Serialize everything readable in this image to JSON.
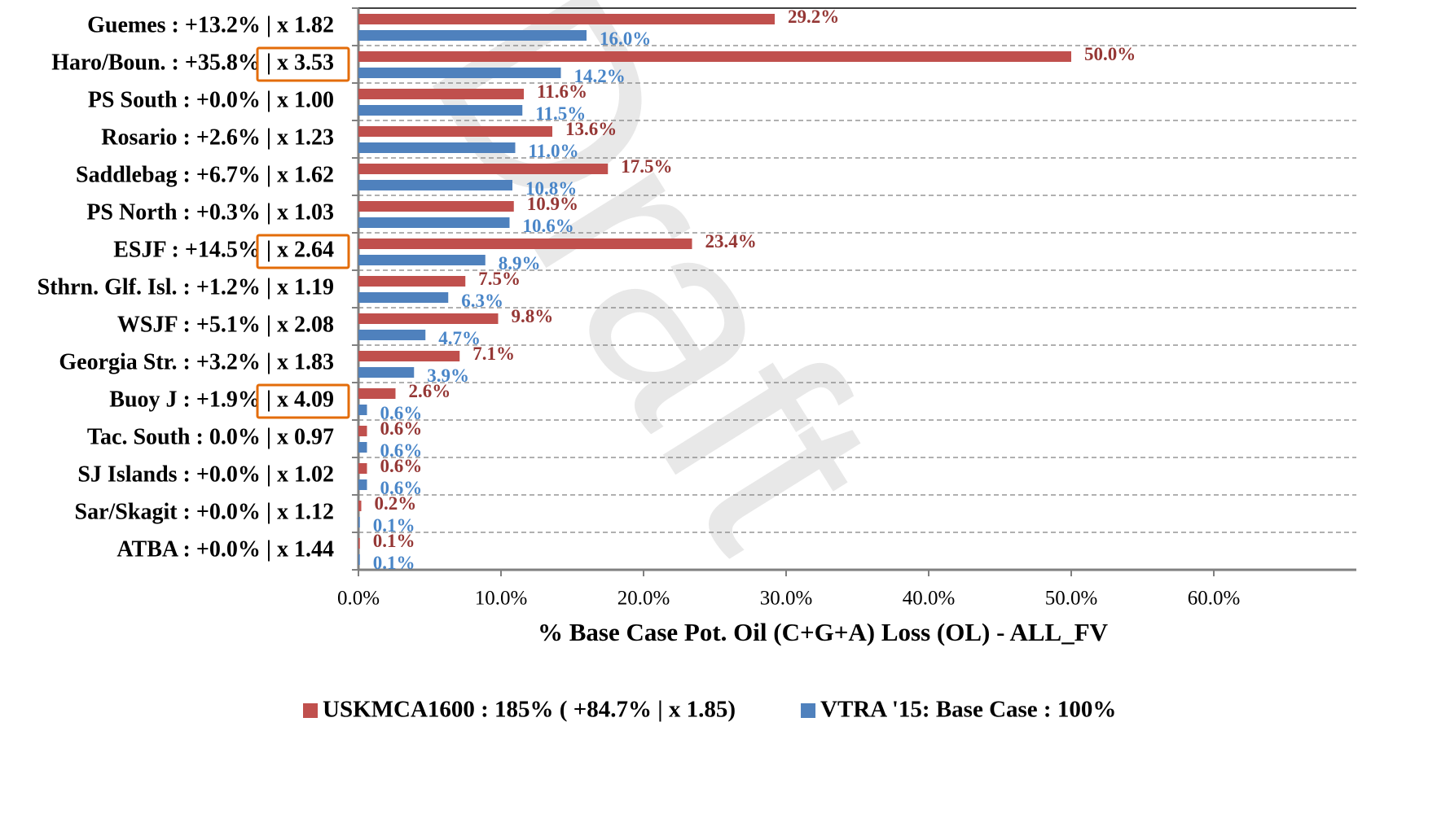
{
  "chart_data": {
    "type": "bar",
    "orientation": "horizontal",
    "watermark": "Draft",
    "x_label": "% Base Case Pot. Oil (C+G+A) Loss (OL) - ALL_FV",
    "categories": [
      "Guemes : +13.2% |  x 1.82",
      "Haro/Boun. : +35.8% |  x 3.53",
      "PS South : +0.0% |  x 1.00",
      "Rosario : +2.6% |  x 1.23",
      "Saddlebag : +6.7% |  x 1.62",
      "PS North : +0.3% |  x 1.03",
      "ESJF : +14.5% |  x 2.64",
      "Sthrn. Glf. Isl. : +1.2% |  x 1.19",
      "WSJF : +5.1% |  x 2.08",
      "Georgia Str. : +3.2% |  x 1.83",
      "Buoy J : +1.9% |  x 4.09",
      "Tac. South : 0.0% |  x 0.97",
      "SJ Islands : +0.0% |  x 1.02",
      "Sar/Skagit : +0.0% |  x 1.12",
      "ATBA : +0.0% |  x 1.44"
    ],
    "highlighted_categories": [
      1,
      6,
      10
    ],
    "highlight_color": "#e36c09",
    "series": [
      {
        "name": "USKMCA1600 : 185% ( +84.7% | x 1.85)",
        "color": "#c0504d",
        "label_color": "#953735",
        "values": [
          29.2,
          50.0,
          11.6,
          13.6,
          17.5,
          10.9,
          23.4,
          7.5,
          9.8,
          7.1,
          2.6,
          0.6,
          0.6,
          0.2,
          0.1
        ],
        "value_labels": [
          "29.2%",
          "50.0%",
          "11.6%",
          "13.6%",
          "17.5%",
          "10.9%",
          "23.4%",
          "7.5%",
          "9.8%",
          "7.1%",
          "2.6%",
          "0.6%",
          "0.6%",
          "0.2%",
          "0.1%"
        ]
      },
      {
        "name": "VTRA '15: Base Case : 100%",
        "color": "#4f81bd",
        "label_color": "#4a86c8",
        "values": [
          16.0,
          14.2,
          11.5,
          11.0,
          10.8,
          10.6,
          8.9,
          6.3,
          4.7,
          3.9,
          0.6,
          0.6,
          0.6,
          0.1,
          0.1
        ],
        "value_labels": [
          "16.0%",
          "14.2%",
          "11.5%",
          "11.0%",
          "10.8%",
          "10.6%",
          "8.9%",
          "6.3%",
          "4.7%",
          "3.9%",
          "0.6%",
          "0.6%",
          "0.6%",
          "0.1%",
          "0.1%"
        ]
      }
    ],
    "xlim": [
      0,
      70
    ],
    "xticks": [
      {
        "value": 0,
        "label": "0.0%"
      },
      {
        "value": 10,
        "label": "10.0%"
      },
      {
        "value": 20,
        "label": "20.0%"
      },
      {
        "value": 30,
        "label": "30.0%"
      },
      {
        "value": 40,
        "label": "40.0%"
      },
      {
        "value": 50,
        "label": "50.0%"
      },
      {
        "value": 60,
        "label": "60.0%"
      }
    ],
    "legend": "bottom"
  }
}
